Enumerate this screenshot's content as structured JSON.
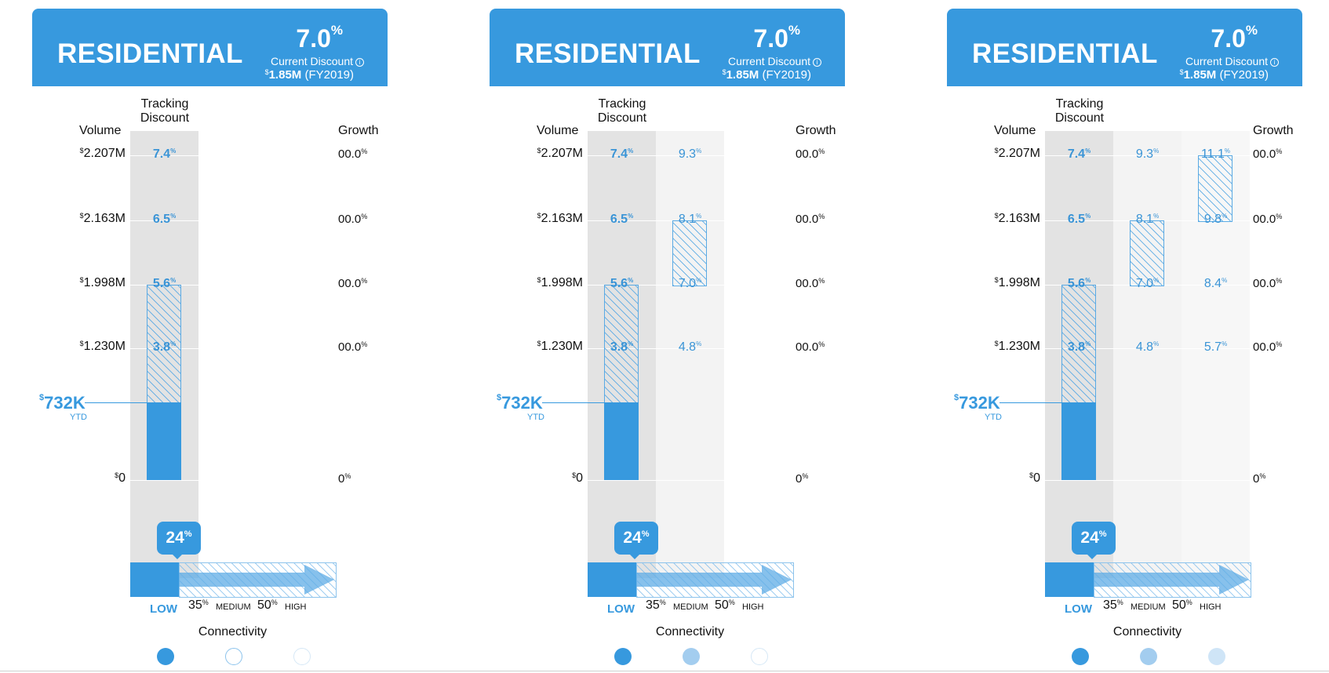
{
  "panels": [
    {
      "title": "RESIDENTIAL",
      "discount_value": "7.0",
      "discount_unit": "%",
      "discount_label": "Current Discount",
      "info_icon": "i",
      "fy_currency": "$",
      "fy_amount": "1.85M",
      "fy_period": "(FY2019)",
      "tracking_label_1": "Tracking",
      "tracking_label_2": "Discount",
      "volume_label": "Volume",
      "growth_label": "Growth",
      "volumes": [
        "2.207M",
        "2.163M",
        "1.998M",
        "1.230M",
        "0"
      ],
      "growths": [
        "00.0",
        "00.0",
        "00.0",
        "00.0",
        "0"
      ],
      "tiers": [
        [
          "7.4",
          "6.5",
          "5.6",
          "3.8"
        ],
        [],
        []
      ],
      "ytd_value": "732K",
      "ytd_label": "YTD",
      "bubble": "24",
      "ticks": [
        "LOW",
        "35",
        "MEDIUM",
        "50",
        "HIGH"
      ],
      "connectivity_label": "Connectivity",
      "dots": [
        "filled",
        "outline",
        "outline-faint"
      ]
    },
    {
      "title": "RESIDENTIAL",
      "discount_value": "7.0",
      "discount_unit": "%",
      "discount_label": "Current Discount",
      "info_icon": "i",
      "fy_currency": "$",
      "fy_amount": "1.85M",
      "fy_period": "(FY2019)",
      "tracking_label_1": "Tracking",
      "tracking_label_2": "Discount",
      "volume_label": "Volume",
      "growth_label": "Growth",
      "volumes": [
        "2.207M",
        "2.163M",
        "1.998M",
        "1.230M",
        "0"
      ],
      "growths": [
        "00.0",
        "00.0",
        "00.0",
        "00.0",
        "0"
      ],
      "tiers": [
        [
          "7.4",
          "6.5",
          "5.6",
          "3.8"
        ],
        [
          "9.3",
          "8.1",
          "7.0",
          "4.8"
        ],
        []
      ],
      "ytd_value": "732K",
      "ytd_label": "YTD",
      "bubble": "24",
      "ticks": [
        "LOW",
        "35",
        "MEDIUM",
        "50",
        "HIGH"
      ],
      "connectivity_label": "Connectivity",
      "dots": [
        "filled",
        "light",
        "outline-faint"
      ]
    },
    {
      "title": "RESIDENTIAL",
      "discount_value": "7.0",
      "discount_unit": "%",
      "discount_label": "Current Discount",
      "info_icon": "i",
      "fy_currency": "$",
      "fy_amount": "1.85M",
      "fy_period": "(FY2019)",
      "tracking_label_1": "Tracking",
      "tracking_label_2": "Discount",
      "volume_label": "Volume",
      "growth_label": "Growth",
      "volumes": [
        "2.207M",
        "2.163M",
        "1.998M",
        "1.230M",
        "0"
      ],
      "growths": [
        "00.0",
        "00.0",
        "00.0",
        "00.0",
        "0"
      ],
      "tiers": [
        [
          "7.4",
          "6.5",
          "5.6",
          "3.8"
        ],
        [
          "9.3",
          "8.1",
          "7.0",
          "4.8"
        ],
        [
          "11.1",
          "9.8",
          "8.4",
          "5.7"
        ]
      ],
      "ytd_value": "732K",
      "ytd_label": "YTD",
      "bubble": "24",
      "ticks": [
        "LOW",
        "35",
        "MEDIUM",
        "50",
        "HIGH"
      ],
      "connectivity_label": "Connectivity",
      "dots": [
        "filled",
        "light",
        "lighter"
      ]
    }
  ],
  "units": {
    "currency": "$",
    "percent": "%"
  },
  "colors": {
    "brand": "#3799de",
    "light_dot": "#a3cdef",
    "lighter_dot": "#cfe5f7"
  }
}
